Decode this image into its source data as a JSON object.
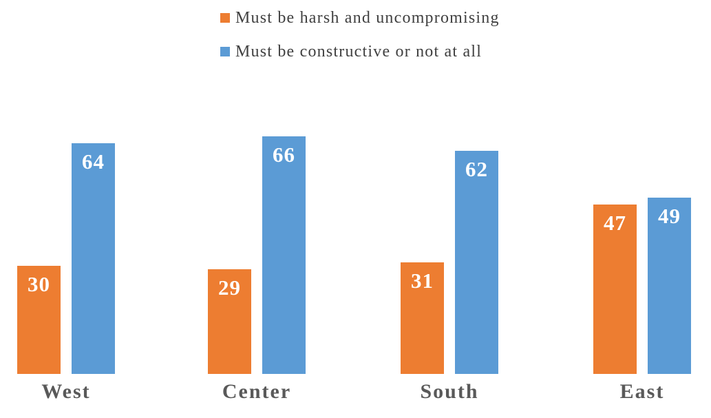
{
  "chart_data": {
    "type": "bar",
    "title": "",
    "xlabel": "",
    "ylabel": "",
    "categories": [
      "West",
      "Center",
      "South",
      "East"
    ],
    "series": [
      {
        "name": "Must be harsh and uncompromising",
        "color": "#ED7D31",
        "values": [
          30,
          29,
          31,
          47
        ]
      },
      {
        "name": "Must be constructive or not at all",
        "color": "#5B9BD5",
        "values": [
          64,
          66,
          62,
          49
        ]
      }
    ],
    "ylim": [
      0,
      70
    ],
    "grid": false,
    "axes_visible": false,
    "legend_position": "top-center",
    "value_labels": {
      "position": "inside-top",
      "color": "#FFFFFF"
    },
    "category_label_color": "#595959",
    "legend_text_color": "#404040",
    "background": "#FFFFFF"
  }
}
